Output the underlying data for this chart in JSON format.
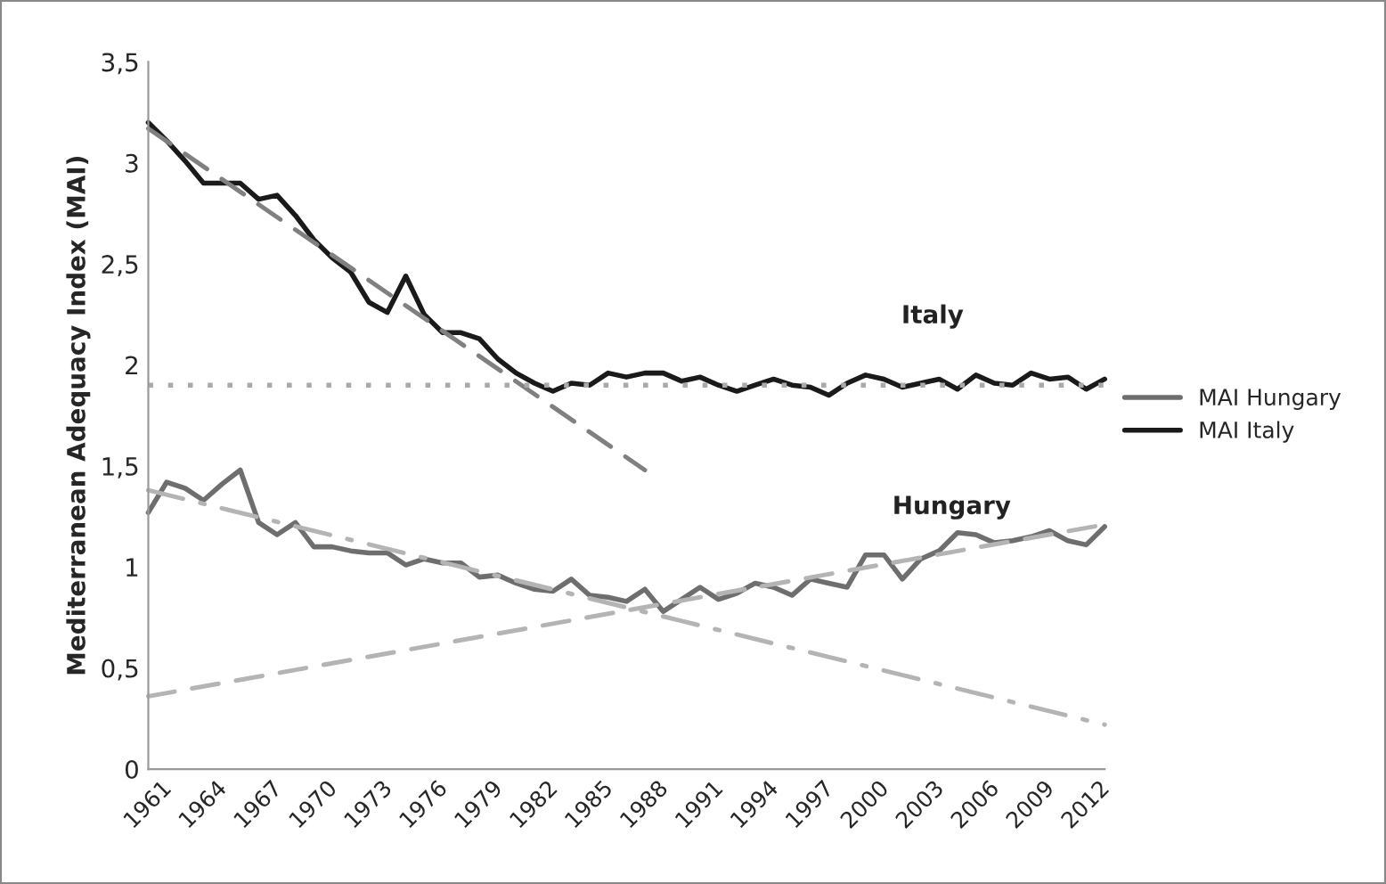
{
  "chart_data": {
    "type": "line",
    "ylabel": "Mediterranean Adequacy Index (MAI)",
    "x": [
      1961,
      1962,
      1963,
      1964,
      1965,
      1966,
      1967,
      1968,
      1969,
      1970,
      1971,
      1972,
      1973,
      1974,
      1975,
      1976,
      1977,
      1978,
      1979,
      1980,
      1981,
      1982,
      1983,
      1984,
      1985,
      1986,
      1987,
      1988,
      1989,
      1990,
      1991,
      1992,
      1993,
      1994,
      1995,
      1996,
      1997,
      1998,
      1999,
      2000,
      2001,
      2002,
      2003,
      2004,
      2005,
      2006,
      2007,
      2008,
      2009,
      2010,
      2011,
      2012,
      2013
    ],
    "series": [
      {
        "name": "MAI Hungary",
        "color": "#6e6e6e",
        "values": [
          1.27,
          1.42,
          1.39,
          1.33,
          1.41,
          1.48,
          1.22,
          1.16,
          1.22,
          1.1,
          1.1,
          1.08,
          1.07,
          1.07,
          1.01,
          1.04,
          1.02,
          1.02,
          0.95,
          0.96,
          0.92,
          0.89,
          0.88,
          0.94,
          0.86,
          0.85,
          0.83,
          0.89,
          0.78,
          0.84,
          0.9,
          0.84,
          0.87,
          0.92,
          0.9,
          0.86,
          0.94,
          0.92,
          0.9,
          1.06,
          1.06,
          0.94,
          1.04,
          1.08,
          1.17,
          1.16,
          1.12,
          1.13,
          1.15,
          1.18,
          1.13,
          1.11,
          1.2
        ]
      },
      {
        "name": "MAI Italy",
        "color": "#1a1a1a",
        "values": [
          3.2,
          3.11,
          3.01,
          2.9,
          2.9,
          2.9,
          2.82,
          2.84,
          2.74,
          2.62,
          2.53,
          2.46,
          2.31,
          2.26,
          2.44,
          2.25,
          2.16,
          2.16,
          2.13,
          2.03,
          1.96,
          1.91,
          1.87,
          1.91,
          1.9,
          1.96,
          1.94,
          1.96,
          1.96,
          1.92,
          1.94,
          1.9,
          1.87,
          1.9,
          1.93,
          1.9,
          1.89,
          1.85,
          1.91,
          1.95,
          1.93,
          1.89,
          1.91,
          1.93,
          1.88,
          1.95,
          1.91,
          1.9,
          1.96,
          1.93,
          1.94,
          1.88,
          1.93
        ]
      },
      {
        "type": "line",
        "x": [
          1961,
          1988
        ],
        "color": "#808080",
        "line_style": "dashed",
        "values": [
          3.17,
          1.48
        ]
      },
      {
        "type": "line",
        "x": [
          1961,
          2013
        ],
        "color": "#b4b4b4",
        "line_style": "dashdot",
        "values": [
          1.38,
          0.22
        ]
      },
      {
        "type": "line",
        "x": [
          1961,
          2013
        ],
        "color": "#b4b4b4",
        "line_style": "dashed",
        "values": [
          0.36,
          1.21
        ]
      }
    ],
    "ref_lines": [
      {
        "axis": "y",
        "value": 1.9,
        "color": "#aaaaaa",
        "line_style": "dotted"
      }
    ],
    "annotations": [
      "Italy",
      "Hungary"
    ],
    "xlim": [
      1961,
      2013
    ],
    "xticks": [
      1961,
      1964,
      1967,
      1970,
      1973,
      1976,
      1979,
      1982,
      1985,
      1988,
      1991,
      1994,
      1997,
      2000,
      2003,
      2006,
      2009,
      2012
    ],
    "ylim": [
      0,
      3.5
    ],
    "yticks": [
      0,
      {
        "value": 0.5,
        "label": "0,5"
      },
      1,
      {
        "value": 1.5,
        "label": "1,5"
      },
      2,
      {
        "value": 2.5,
        "label": "2,5"
      },
      3,
      {
        "value": 3.5,
        "label": "3,5"
      }
    ],
    "grid": false,
    "legend": "right"
  }
}
